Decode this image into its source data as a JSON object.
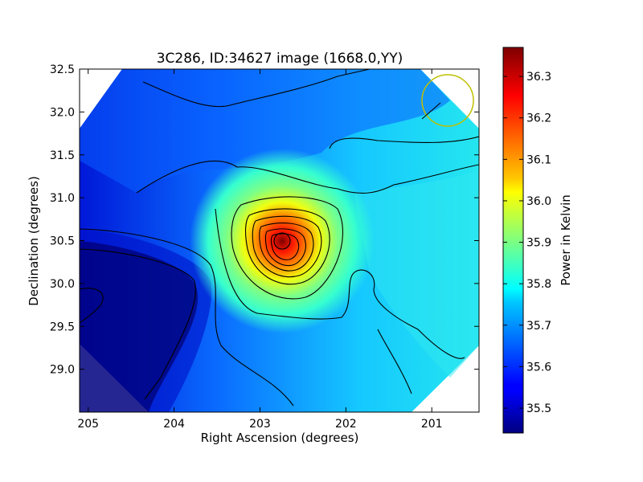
{
  "chart_data": {
    "type": "heatmap",
    "title": "3C286, ID:34627 image (1668.0,YY)",
    "xlabel": "Right Ascension (degrees)",
    "ylabel": "Declination (degrees)",
    "xlim": [
      205.1,
      200.45
    ],
    "ylim": [
      28.5,
      32.5
    ],
    "x_ticks": [
      "205",
      "204",
      "203",
      "202",
      "201"
    ],
    "x_tick_values": [
      205,
      204,
      203,
      202,
      201
    ],
    "y_ticks": [
      "29.0",
      "29.5",
      "30.0",
      "30.5",
      "31.0",
      "31.5",
      "32.0",
      "32.5"
    ],
    "y_tick_values": [
      29.0,
      29.5,
      30.0,
      30.5,
      31.0,
      31.5,
      32.0,
      32.5
    ],
    "colorbar": {
      "label": "Power in Kelvin",
      "min": 35.44,
      "max": 36.37,
      "ticks": [
        "35.5",
        "35.6",
        "35.7",
        "35.8",
        "35.9",
        "36.0",
        "36.1",
        "36.2",
        "36.3"
      ],
      "tick_values": [
        35.5,
        35.6,
        35.7,
        35.8,
        35.9,
        36.0,
        36.1,
        36.2,
        36.3
      ],
      "colormap": "jet"
    },
    "peak": {
      "ra": 202.72,
      "dec": 30.5,
      "value": 36.36
    },
    "beam_circle": {
      "ra": 200.85,
      "dec": 32.15,
      "color": "#bfbf00"
    },
    "contour_color": "#000000",
    "grid": false
  }
}
